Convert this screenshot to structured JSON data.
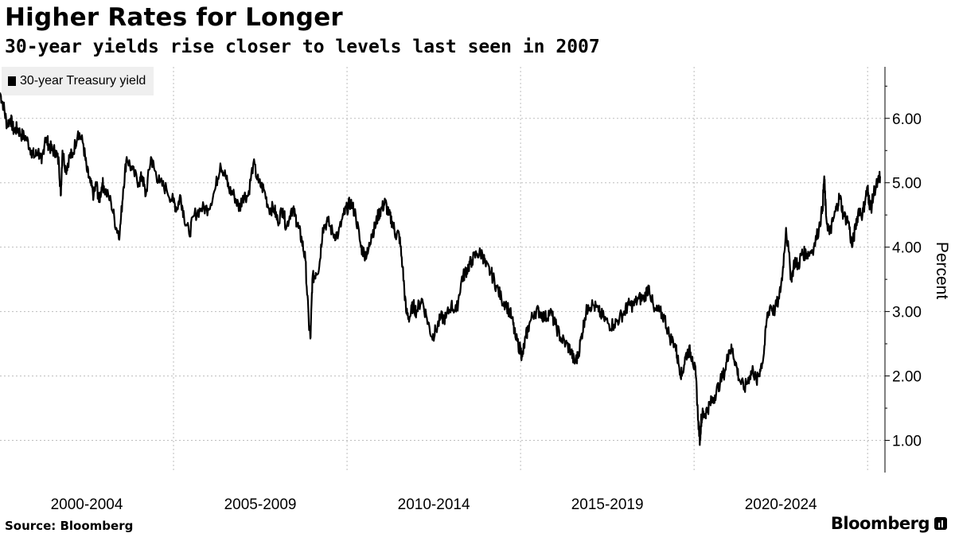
{
  "title": "Higher Rates for Longer",
  "subtitle": "30-year yields rise closer to levels last seen in 2007",
  "source": "Source: Bloomberg",
  "brand": "Bloomberg",
  "logo_icon": "bloomberg-terminal-icon",
  "colors": {
    "line": "#000000",
    "grid": "#bdbdbd",
    "legend_bg": "#efefef"
  },
  "chart_data": {
    "type": "line",
    "title": "Higher Rates for Longer",
    "subtitle": "30-year yields rise closer to levels last seen in 2007",
    "xlabel": "",
    "ylabel": "Percent",
    "xlim": [
      2000.0,
      2025.5
    ],
    "ylim": [
      0.5,
      6.8
    ],
    "yticks": [
      1,
      2,
      3,
      4,
      5,
      6
    ],
    "ytick_labels": [
      "1.00",
      "2.00",
      "3.00",
      "4.00",
      "5.00",
      "6.00"
    ],
    "xtick_labels": [
      "2000-2004",
      "2005-2009",
      "2010-2014",
      "2015-2019",
      "2020-2024"
    ],
    "xtick_label_centers": [
      2002.5,
      2007.5,
      2012.5,
      2017.5,
      2022.5
    ],
    "x_gridlines": [
      2005,
      2010,
      2015,
      2020,
      2025
    ],
    "y_axis_side": "right",
    "grid": true,
    "legend": {
      "position": "top-left",
      "entries": [
        "30-year Treasury yield"
      ]
    },
    "series": [
      {
        "name": "30-year Treasury yield",
        "x": [
          2000.0,
          2000.1,
          2000.2,
          2000.3,
          2000.4,
          2000.5,
          2000.6,
          2000.75,
          2000.9,
          2001.0,
          2001.1,
          2001.2,
          2001.3,
          2001.4,
          2001.5,
          2001.6,
          2001.7,
          2001.75,
          2001.8,
          2001.9,
          2002.0,
          2002.1,
          2002.25,
          2002.4,
          2002.5,
          2002.6,
          2002.7,
          2002.78,
          2002.85,
          2002.95,
          2003.0,
          2003.2,
          2003.35,
          2003.45,
          2003.55,
          2003.65,
          2003.8,
          2004.0,
          2004.1,
          2004.2,
          2004.35,
          2004.45,
          2004.6,
          2004.8,
          2005.0,
          2005.1,
          2005.2,
          2005.3,
          2005.45,
          2005.6,
          2005.8,
          2006.0,
          2006.2,
          2006.35,
          2006.5,
          2006.6,
          2006.75,
          2006.9,
          2007.0,
          2007.15,
          2007.3,
          2007.45,
          2007.6,
          2007.75,
          2007.9,
          2008.0,
          2008.15,
          2008.25,
          2008.4,
          2008.5,
          2008.6,
          2008.7,
          2008.8,
          2008.9,
          2008.95,
          2009.0,
          2009.1,
          2009.2,
          2009.3,
          2009.45,
          2009.6,
          2009.75,
          2009.9,
          2010.0,
          2010.1,
          2010.25,
          2010.4,
          2010.5,
          2010.6,
          2010.7,
          2010.8,
          2010.9,
          2011.0,
          2011.1,
          2011.2,
          2011.3,
          2011.4,
          2011.5,
          2011.6,
          2011.7,
          2011.8,
          2011.9,
          2012.0,
          2012.15,
          2012.3,
          2012.45,
          2012.55,
          2012.7,
          2012.85,
          2013.0,
          2013.15,
          2013.3,
          2013.4,
          2013.5,
          2013.6,
          2013.75,
          2013.9,
          2014.0,
          2014.15,
          2014.3,
          2014.45,
          2014.6,
          2014.75,
          2014.85,
          2015.0,
          2015.05,
          2015.15,
          2015.25,
          2015.4,
          2015.55,
          2015.7,
          2015.85,
          2016.0,
          2016.15,
          2016.3,
          2016.45,
          2016.55,
          2016.65,
          2016.75,
          2016.85,
          2016.95,
          2017.1,
          2017.25,
          2017.4,
          2017.55,
          2017.7,
          2017.85,
          2018.0,
          2018.1,
          2018.25,
          2018.4,
          2018.55,
          2018.7,
          2018.85,
          2019.0,
          2019.15,
          2019.3,
          2019.45,
          2019.55,
          2019.65,
          2019.75,
          2019.85,
          2019.95,
          2020.05,
          2020.12,
          2020.17,
          2020.2,
          2020.24,
          2020.3,
          2020.4,
          2020.5,
          2020.6,
          2020.75,
          2020.9,
          2021.0,
          2021.1,
          2021.2,
          2021.3,
          2021.45,
          2021.6,
          2021.7,
          2021.8,
          2021.9,
          2022.0,
          2022.1,
          2022.2,
          2022.3,
          2022.45,
          2022.55,
          2022.65,
          2022.8,
          2022.9,
          2023.0,
          2023.1,
          2023.2,
          2023.3,
          2023.45,
          2023.6,
          2023.7,
          2023.75,
          2023.8,
          2023.9,
          2024.0,
          2024.1,
          2024.2,
          2024.3,
          2024.45,
          2024.55,
          2024.65,
          2024.75,
          2024.85,
          2024.95,
          2025.0,
          2025.05,
          2025.1,
          2025.2,
          2025.3,
          2025.36
        ],
        "y": [
          6.4,
          6.2,
          5.9,
          6.0,
          5.8,
          5.85,
          5.75,
          5.7,
          5.5,
          5.4,
          5.5,
          5.3,
          5.7,
          5.6,
          5.5,
          5.5,
          5.3,
          4.8,
          5.5,
          5.2,
          5.4,
          5.45,
          5.8,
          5.6,
          5.2,
          5.0,
          4.8,
          5.0,
          4.7,
          5.0,
          4.9,
          4.7,
          4.3,
          4.2,
          4.9,
          5.4,
          5.2,
          5.0,
          5.1,
          4.8,
          5.4,
          5.2,
          5.0,
          4.9,
          4.7,
          4.6,
          4.8,
          4.5,
          4.2,
          4.5,
          4.6,
          4.6,
          4.9,
          5.3,
          5.1,
          4.9,
          4.8,
          4.6,
          4.8,
          4.8,
          5.3,
          5.0,
          4.9,
          4.6,
          4.6,
          4.4,
          4.6,
          4.3,
          4.6,
          4.5,
          4.3,
          4.1,
          3.8,
          2.8,
          2.6,
          3.5,
          3.6,
          3.7,
          4.3,
          4.4,
          4.2,
          4.2,
          4.5,
          4.6,
          4.7,
          4.5,
          4.0,
          3.9,
          3.9,
          4.2,
          4.3,
          4.5,
          4.6,
          4.7,
          4.5,
          4.4,
          4.2,
          4.2,
          3.7,
          3.0,
          2.9,
          3.1,
          3.0,
          3.2,
          2.9,
          2.6,
          2.7,
          2.9,
          2.9,
          3.1,
          3.0,
          3.5,
          3.6,
          3.7,
          3.8,
          3.9,
          3.9,
          3.7,
          3.6,
          3.4,
          3.2,
          3.1,
          2.9,
          2.6,
          2.4,
          2.3,
          2.6,
          2.8,
          3.0,
          3.0,
          2.9,
          3.0,
          2.8,
          2.6,
          2.5,
          2.4,
          2.2,
          2.3,
          2.6,
          2.9,
          3.1,
          3.1,
          3.0,
          2.9,
          2.8,
          2.8,
          2.9,
          3.0,
          3.1,
          3.1,
          3.2,
          3.2,
          3.4,
          3.0,
          3.0,
          2.9,
          2.6,
          2.5,
          2.2,
          2.0,
          2.3,
          2.4,
          2.3,
          2.0,
          1.3,
          1.0,
          1.3,
          1.4,
          1.4,
          1.5,
          1.6,
          1.7,
          1.9,
          2.1,
          2.4,
          2.4,
          2.2,
          1.95,
          1.8,
          2.0,
          2.1,
          1.9,
          2.1,
          2.3,
          2.9,
          3.1,
          3.0,
          3.2,
          3.6,
          4.3,
          3.5,
          3.8,
          3.7,
          3.9,
          3.9,
          3.9,
          4.0,
          4.3,
          4.6,
          5.1,
          4.5,
          4.2,
          4.4,
          4.6,
          4.8,
          4.5,
          4.4,
          4.0,
          4.3,
          4.6,
          4.5,
          4.8,
          4.9,
          4.7,
          4.6,
          4.9,
          5.0,
          5.1
        ]
      }
    ]
  }
}
